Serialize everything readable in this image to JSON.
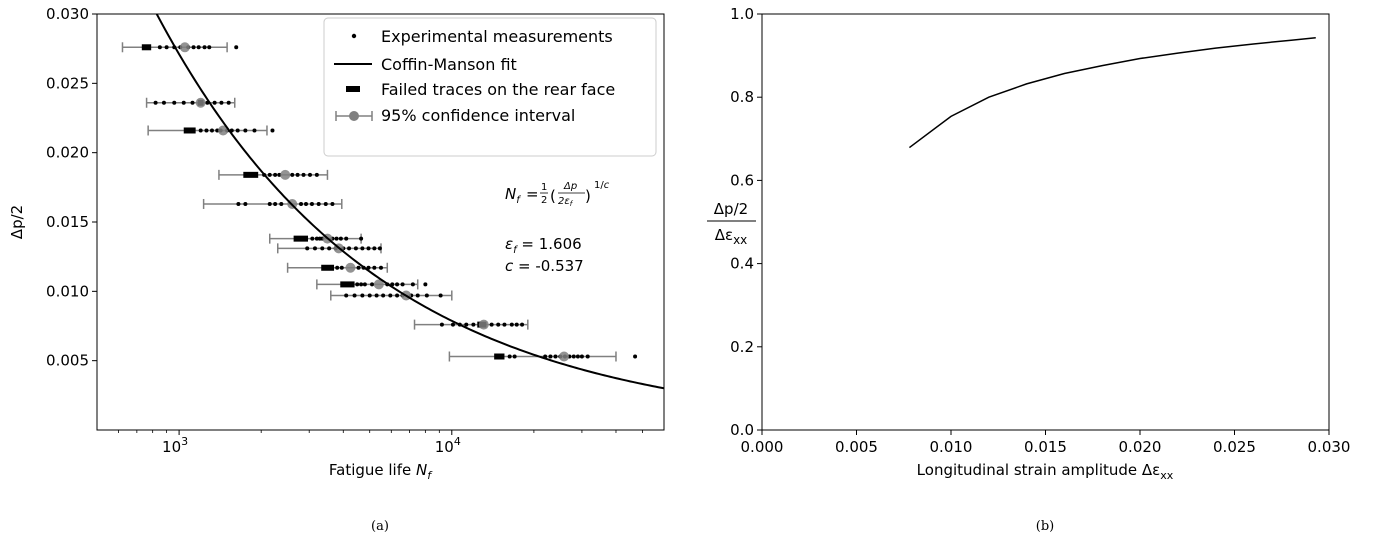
{
  "chart_data": [
    {
      "panel": "(a)",
      "type": "scatter",
      "xscale": "log",
      "xlim": [
        500,
        60000
      ],
      "ylim": [
        0.0,
        0.03
      ],
      "yticks": [
        "0.005",
        "0.010",
        "0.015",
        "0.020",
        "0.025",
        "0.030"
      ],
      "xticks": [
        {
          "base": "10",
          "exp": "3",
          "value": 1000
        },
        {
          "base": "10",
          "exp": "4",
          "value": 10000
        }
      ],
      "xlabel_main": "Fatigue life ",
      "xlabel_sym": "N",
      "xlabel_sub": "f",
      "ylabel": "Δp/2",
      "legend": {
        "position": "top-right",
        "entries": [
          {
            "label": "Experimental measurements",
            "marker": "dot"
          },
          {
            "label": "Coffin-Manson fit",
            "marker": "line"
          },
          {
            "label": "Failed traces on the rear face",
            "marker": "bar"
          },
          {
            "label": "95% confidence interval",
            "marker": "errorbar"
          }
        ]
      },
      "annotation": {
        "formula": "Nf = ½ (Δp / 2εf)^(1/c)",
        "eps_label": "εf = 1.606",
        "c_label": "c = -0.537"
      },
      "fit": {
        "eps_f": 1.606,
        "c": -0.537,
        "color": "#000000"
      },
      "groups": [
        {
          "y": 0.0276,
          "ci": [
            620,
            1500
          ],
          "mean": 1050,
          "failed": [
            730,
            790
          ],
          "points": [
            850,
            900,
            960,
            1010,
            1080,
            1130,
            1180,
            1240,
            1290,
            1620
          ]
        },
        {
          "y": 0.0236,
          "ci": [
            760,
            1600
          ],
          "mean": 1200,
          "failed": [
            1170,
            1230
          ],
          "points": [
            820,
            880,
            960,
            1040,
            1120,
            1270,
            1350,
            1430,
            1520
          ]
        },
        {
          "y": 0.0216,
          "ci": [
            770,
            2100
          ],
          "mean": 1450,
          "failed": [
            1040,
            1150
          ],
          "points": [
            1200,
            1260,
            1320,
            1380,
            1420,
            1500,
            1560,
            1640,
            1750,
            1890,
            2200
          ]
        },
        {
          "y": 0.0184,
          "ci": [
            1400,
            3500
          ],
          "mean": 2450,
          "failed": [
            1720,
            1950
          ],
          "points": [
            2050,
            2150,
            2250,
            2330,
            2600,
            2720,
            2860,
            3020,
            3200
          ]
        },
        {
          "y": 0.0163,
          "ci": [
            1230,
            3950
          ],
          "mean": 2600,
          "failed": [],
          "points": [
            1650,
            1750,
            2150,
            2250,
            2370,
            2800,
            2920,
            3070,
            3250,
            3450,
            3650
          ]
        },
        {
          "y": 0.0138,
          "ci": [
            2150,
            4650
          ],
          "mean": 3500,
          "failed": [
            2630,
            2970
          ],
          "points": [
            3080,
            3200,
            3280,
            3350,
            3650,
            3780,
            3920,
            4100,
            4650
          ]
        },
        {
          "y": 0.0131,
          "ci": [
            2300,
            5500
          ],
          "mean": 3850,
          "failed": [],
          "points": [
            2950,
            3150,
            3350,
            3550,
            3750,
            4000,
            4200,
            4450,
            4700,
            4950,
            5200,
            5450
          ]
        },
        {
          "y": 0.0117,
          "ci": [
            2500,
            5800
          ],
          "mean": 4250,
          "failed": [
            3320,
            3700
          ],
          "points": [
            3800,
            3950,
            4550,
            4750,
            4950,
            5200,
            5500
          ]
        },
        {
          "y": 0.0105,
          "ci": [
            3200,
            7500
          ],
          "mean": 5400,
          "failed": [
            3900,
            4400
          ],
          "points": [
            4500,
            4650,
            4800,
            5100,
            5800,
            6050,
            6300,
            6600,
            7200,
            8000
          ]
        },
        {
          "y": 0.0097,
          "ci": [
            3600,
            10000
          ],
          "mean": 6800,
          "failed": [],
          "points": [
            4100,
            4400,
            4700,
            5000,
            5300,
            5600,
            5950,
            6300,
            6600,
            7100,
            7500,
            8100,
            9100
          ]
        },
        {
          "y": 0.0076,
          "ci": [
            7300,
            19000
          ],
          "mean": 13100,
          "failed": [
            12400,
            13400
          ],
          "points": [
            9200,
            10100,
            10700,
            11300,
            12000,
            14000,
            14800,
            15600,
            16600,
            17300,
            18100
          ]
        },
        {
          "y": 0.0053,
          "ci": [
            9800,
            40000
          ],
          "mean": 25800,
          "failed": [
            14300,
            15600
          ],
          "points": [
            16300,
            17000,
            22000,
            23000,
            24000,
            25000,
            26000,
            27000,
            28000,
            29000,
            30000,
            31500,
            47000
          ]
        }
      ]
    },
    {
      "panel": "(b)",
      "type": "line",
      "xlim": [
        0.0,
        0.03
      ],
      "ylim": [
        0.0,
        1.0
      ],
      "xticks": [
        "0.000",
        "0.005",
        "0.010",
        "0.015",
        "0.020",
        "0.025",
        "0.030"
      ],
      "yticks": [
        "0.0",
        "0.2",
        "0.4",
        "0.6",
        "0.8",
        "1.0"
      ],
      "xlabel": "Longitudinal strain amplitude Δε",
      "xlabel_sub": "xx",
      "ylabel_num": "Δp/2",
      "ylabel_den": "Δε",
      "ylabel_den_sub": "xx",
      "x": [
        0.0078,
        0.01,
        0.012,
        0.014,
        0.016,
        0.018,
        0.02,
        0.022,
        0.024,
        0.026,
        0.028,
        0.0293
      ],
      "y": [
        0.679,
        0.754,
        0.8,
        0.832,
        0.857,
        0.876,
        0.893,
        0.906,
        0.918,
        0.928,
        0.937,
        0.943
      ],
      "line_color": "#000000"
    }
  ],
  "captions": {
    "a": "(a)",
    "b": "(b)"
  }
}
